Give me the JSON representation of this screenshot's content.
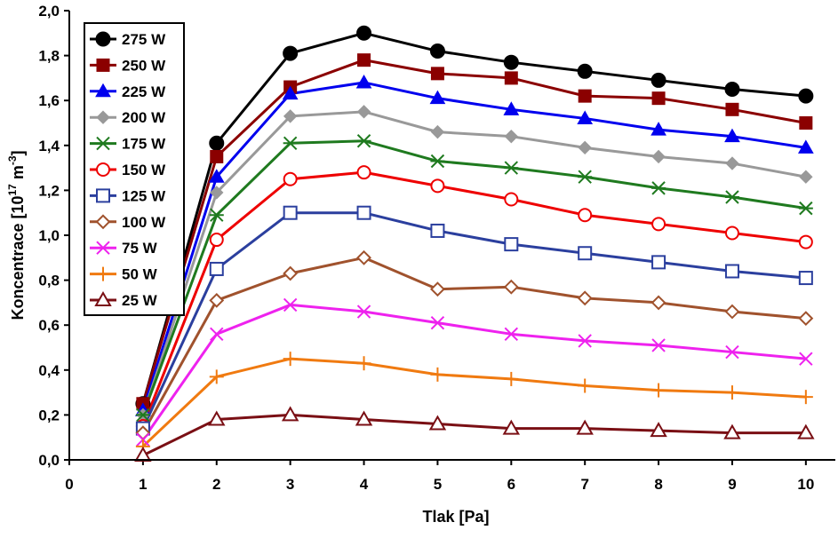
{
  "chart_data": {
    "type": "line",
    "title": "",
    "xlabel": "Tlak [Pa]",
    "ylabel_main": "Koncentrace [10",
    "ylabel_exp1": "17",
    "ylabel_mid": " m",
    "ylabel_exp2": "-3",
    "ylabel_end": "]",
    "xlim": [
      0,
      10.4
    ],
    "ylim": [
      0,
      2.0
    ],
    "xticks": [
      "0",
      "1",
      "2",
      "3",
      "4",
      "5",
      "6",
      "7",
      "8",
      "9",
      "10"
    ],
    "yticks": [
      "0,0",
      "0,2",
      "0,4",
      "0,6",
      "0,8",
      "1,0",
      "1,2",
      "1,4",
      "1,6",
      "1,8",
      "2,0"
    ],
    "x": [
      1,
      2,
      3,
      4,
      5,
      6,
      7,
      8,
      9,
      10
    ],
    "legend_position": "top-left",
    "series": [
      {
        "name": "275 W",
        "color": "#000000",
        "marker": "circle-filled",
        "values": [
          0.25,
          1.41,
          1.81,
          1.9,
          1.82,
          1.77,
          1.73,
          1.69,
          1.65,
          1.62
        ]
      },
      {
        "name": "250 W",
        "color": "#8b0000",
        "marker": "square-filled",
        "values": [
          0.25,
          1.35,
          1.66,
          1.78,
          1.72,
          1.7,
          1.62,
          1.61,
          1.56,
          1.5
        ]
      },
      {
        "name": "225 W",
        "color": "#0000ee",
        "marker": "triangle-filled",
        "values": [
          0.22,
          1.26,
          1.63,
          1.68,
          1.61,
          1.56,
          1.52,
          1.47,
          1.44,
          1.39
        ]
      },
      {
        "name": "200 W",
        "color": "#999999",
        "marker": "diamond-filled",
        "values": [
          0.2,
          1.19,
          1.53,
          1.55,
          1.46,
          1.44,
          1.39,
          1.35,
          1.32,
          1.26
        ]
      },
      {
        "name": "175 W",
        "color": "#1f7a1f",
        "marker": "star",
        "values": [
          0.2,
          1.09,
          1.41,
          1.42,
          1.33,
          1.3,
          1.26,
          1.21,
          1.17,
          1.12
        ]
      },
      {
        "name": "150 W",
        "color": "#ee0000",
        "marker": "circle-open",
        "values": [
          0.15,
          0.98,
          1.25,
          1.28,
          1.22,
          1.16,
          1.09,
          1.05,
          1.01,
          0.97
        ]
      },
      {
        "name": "125 W",
        "color": "#2b3f9e",
        "marker": "square-open",
        "values": [
          0.14,
          0.85,
          1.1,
          1.1,
          1.02,
          0.96,
          0.92,
          0.88,
          0.84,
          0.81
        ]
      },
      {
        "name": "100 W",
        "color": "#a0522d",
        "marker": "diamond-open",
        "values": [
          0.12,
          0.71,
          0.83,
          0.9,
          0.76,
          0.77,
          0.72,
          0.7,
          0.66,
          0.63
        ]
      },
      {
        "name": "75 W",
        "color": "#ee22ee",
        "marker": "x",
        "values": [
          0.09,
          0.56,
          0.69,
          0.66,
          0.61,
          0.56,
          0.53,
          0.51,
          0.48,
          0.45
        ]
      },
      {
        "name": "50 W",
        "color": "#f07a10",
        "marker": "plus",
        "values": [
          0.06,
          0.37,
          0.45,
          0.43,
          0.38,
          0.36,
          0.33,
          0.31,
          0.3,
          0.28
        ]
      },
      {
        "name": "25 W",
        "color": "#7a0f14",
        "marker": "triangle-open",
        "values": [
          0.02,
          0.18,
          0.2,
          0.18,
          0.16,
          0.14,
          0.14,
          0.13,
          0.12,
          0.12
        ]
      }
    ]
  }
}
